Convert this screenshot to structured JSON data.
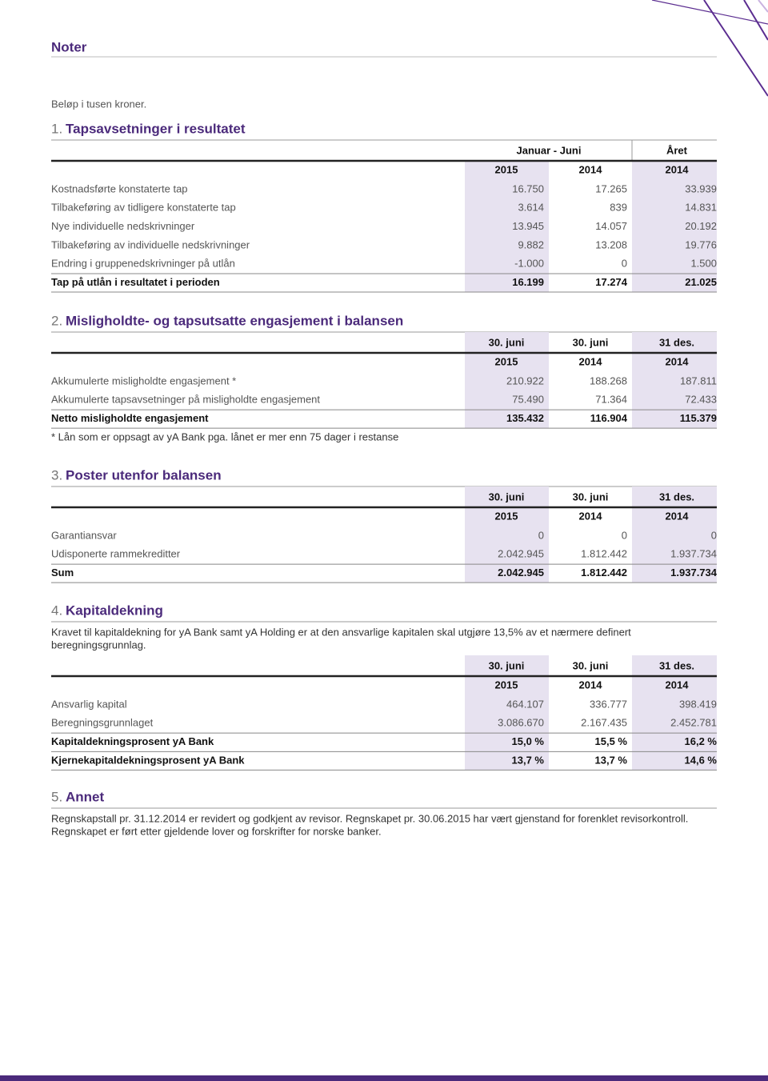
{
  "header": {
    "title": "Noter",
    "note": "Beløp i tusen kroner."
  },
  "sections": [
    {
      "number": "1.",
      "title": "Tapsavsetninger i resultatet",
      "group_headers": [
        "Januar - Juni",
        "Året"
      ],
      "columns": [
        "2015",
        "2014",
        "2014"
      ],
      "rows": [
        [
          "Kostnadsførte konstaterte tap",
          "16.750",
          "17.265",
          "33.939"
        ],
        [
          "Tilbakeføring av tidligere konstaterte tap",
          "3.614",
          "839",
          "14.831"
        ],
        [
          "Nye individuelle nedskrivninger",
          "13.945",
          "14.057",
          "20.192"
        ],
        [
          "Tilbakeføring av individuelle nedskrivninger",
          "9.882",
          "13.208",
          "19.776"
        ],
        [
          "Endring i gruppenedskrivninger på utlån",
          "-1.000",
          "0",
          "1.500"
        ]
      ],
      "totals": [
        [
          "Tap på utlån i resultatet i perioden",
          "16.199",
          "17.274",
          "21.025"
        ]
      ]
    },
    {
      "number": "2.",
      "title": "Misligholdte- og tapsutsatte engasjement i balansen",
      "dates": [
        "30. juni",
        "30. juni",
        "31 des."
      ],
      "columns": [
        "2015",
        "2014",
        "2014"
      ],
      "rows": [
        [
          "Akkumulerte misligholdte engasjement *",
          "210.922",
          "188.268",
          "187.811"
        ],
        [
          "Akkumulerte tapsavsetninger på misligholdte engasjement",
          "75.490",
          "71.364",
          "72.433"
        ]
      ],
      "totals": [
        [
          "Netto misligholdte engasjement",
          "135.432",
          "116.904",
          "115.379"
        ]
      ],
      "footnote": "* Lån som er oppsagt av yA Bank pga. lånet er mer enn 75 dager i restanse"
    },
    {
      "number": "3.",
      "title": "Poster utenfor balansen",
      "dates": [
        "30. juni",
        "30. juni",
        "31 des."
      ],
      "columns": [
        "2015",
        "2014",
        "2014"
      ],
      "rows": [
        [
          "Garantiansvar",
          "0",
          "0",
          "0"
        ],
        [
          "Udisponerte rammekreditter",
          "2.042.945",
          "1.812.442",
          "1.937.734"
        ]
      ],
      "totals": [
        [
          "Sum",
          "2.042.945",
          "1.812.442",
          "1.937.734"
        ]
      ]
    },
    {
      "number": "4.",
      "title": "Kapitaldekning",
      "text": [
        "Kravet til kapitaldekning for yA Bank samt yA Holding er at den ansvarlige kapitalen skal utgjøre 13,5% av et nærmere definert",
        "beregningsgrunnlag."
      ],
      "dates": [
        "30. juni",
        "30. juni",
        "31 des."
      ],
      "columns": [
        "2015",
        "2014",
        "2014"
      ],
      "rows": [
        [
          "Ansvarlig kapital",
          "464.107",
          "336.777",
          "398.419"
        ],
        [
          "Beregningsgrunnlaget",
          "3.086.670",
          "2.167.435",
          "2.452.781"
        ]
      ],
      "totals": [
        [
          "Kapitaldekningsprosent yA Bank",
          "15,0 %",
          "15,5 %",
          "16,2 %"
        ],
        [
          "Kjernekapitaldekningsprosent yA Bank",
          "13,7 %",
          "13,7 %",
          "14,6 %"
        ]
      ]
    },
    {
      "number": "5.",
      "title": "Annet",
      "text": [
        "Regnskapstall pr. 31.12.2014 er revidert og godkjent av revisor. Regnskapet pr. 30.06.2015 har vært gjenstand for forenklet revisorkontroll.",
        "Regnskapet er ført etter gjeldende lover og forskrifter for norske banker."
      ]
    }
  ]
}
